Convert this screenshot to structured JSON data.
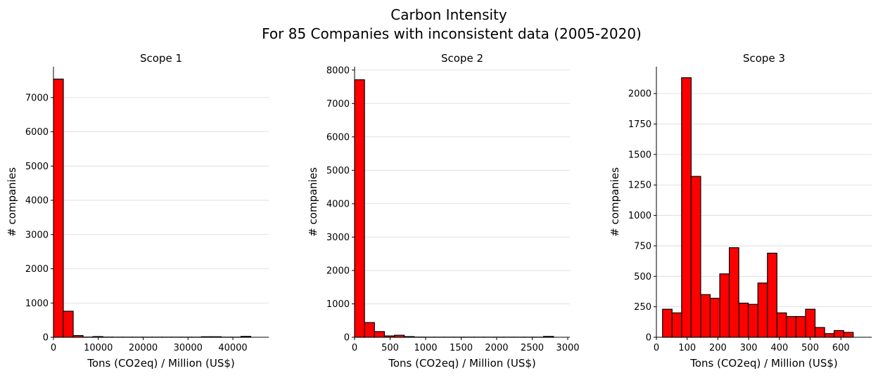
{
  "figure": {
    "title_line1": "Carbon Intensity",
    "title_line2": "For 85 Companies with inconsistent data (2005-2020)"
  },
  "colors": {
    "bar_fill": "#ff0000",
    "bar_edge": "#000000",
    "grid": "#d9d9d9",
    "axis": "#000000"
  },
  "chart_data": [
    {
      "type": "bar",
      "title": "Scope 1",
      "xlabel": "Tons (CO2eq) / Million (US$)",
      "ylabel": "# companies",
      "xlim": [
        0,
        48000
      ],
      "ylim": [
        0,
        7900
      ],
      "xticks": [
        0,
        10000,
        20000,
        30000,
        40000
      ],
      "xtick_labels": [
        "0",
        "10000",
        "20000",
        "30000",
        "40000"
      ],
      "yticks": [
        0,
        1000,
        2000,
        3000,
        4000,
        5000,
        6000,
        7000
      ],
      "ytick_labels": [
        "0",
        "1000",
        "2000",
        "3000",
        "4000",
        "5000",
        "6000",
        "7000"
      ],
      "grid": "y",
      "bin_edges": [
        0,
        2200,
        4400,
        6600,
        8800,
        11000,
        13200,
        15400,
        17600,
        19800,
        22000,
        24200,
        26400,
        28600,
        30800,
        33000,
        35200,
        37400,
        39600,
        41800,
        44000
      ],
      "values": [
        7540,
        760,
        50,
        5,
        20,
        5,
        3,
        3,
        3,
        3,
        3,
        3,
        3,
        3,
        3,
        15,
        15,
        3,
        3,
        25
      ]
    },
    {
      "type": "bar",
      "title": "Scope 2",
      "xlabel": "Tons (CO2eq) / Million (US$)",
      "ylabel": "# companies",
      "xlim": [
        0,
        3030
      ],
      "ylim": [
        0,
        8100
      ],
      "xticks": [
        0,
        500,
        1000,
        1500,
        2000,
        2500,
        3000
      ],
      "xtick_labels": [
        "0",
        "500",
        "1000",
        "1500",
        "2000",
        "2500",
        "3000"
      ],
      "yticks": [
        0,
        1000,
        2000,
        3000,
        4000,
        5000,
        6000,
        7000,
        8000
      ],
      "ytick_labels": [
        "0",
        "1000",
        "2000",
        "3000",
        "4000",
        "5000",
        "6000",
        "7000",
        "8000"
      ],
      "grid": "y",
      "bin_edges": [
        0,
        140,
        280,
        420,
        560,
        700,
        840,
        980,
        1120,
        1260,
        1400,
        1540,
        1680,
        1820,
        1960,
        2100,
        2240,
        2380,
        2520,
        2660,
        2800
      ],
      "values": [
        7710,
        440,
        170,
        40,
        60,
        20,
        5,
        3,
        3,
        3,
        3,
        3,
        3,
        3,
        3,
        3,
        3,
        3,
        3,
        25
      ]
    },
    {
      "type": "bar",
      "title": "Scope 3",
      "xlabel": "Tons (CO2eq) / Million (US$)",
      "ylabel": "# companies",
      "xlim": [
        0,
        700
      ],
      "ylim": [
        0,
        2220
      ],
      "xticks": [
        0,
        100,
        200,
        300,
        400,
        500,
        600
      ],
      "xtick_labels": [
        "0",
        "100",
        "200",
        "300",
        "400",
        "500",
        "600"
      ],
      "yticks": [
        0,
        250,
        500,
        750,
        1000,
        1250,
        1500,
        1750,
        2000
      ],
      "ytick_labels": [
        "0",
        "250",
        "500",
        "750",
        "1000",
        "1250",
        "1500",
        "1750",
        "2000"
      ],
      "grid": "y",
      "bin_edges": [
        20,
        51,
        82,
        113,
        144,
        175,
        206,
        237,
        268,
        299,
        330,
        361,
        392,
        423,
        454,
        485,
        516,
        547,
        578,
        609,
        640
      ],
      "values": [
        230,
        200,
        2130,
        1320,
        350,
        320,
        520,
        735,
        280,
        270,
        445,
        690,
        200,
        170,
        170,
        230,
        80,
        30,
        55,
        40
      ]
    }
  ]
}
